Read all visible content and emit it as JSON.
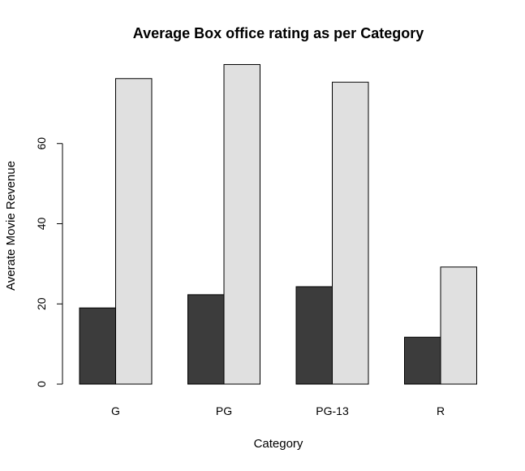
{
  "chart_data": {
    "type": "bar",
    "title": "Average Box office rating as per Category",
    "xlabel": "Category",
    "ylabel": "Averate Movie Revenue",
    "categories": [
      "G",
      "PG",
      "PG-13",
      "R"
    ],
    "series": [
      {
        "values": [
          19,
          22.3,
          24.3,
          11.7
        ],
        "color": "#3c3c3c"
      },
      {
        "values": [
          76.2,
          79.7,
          75.3,
          29.2
        ],
        "color": "#e0e0e0"
      }
    ],
    "ylim": [
      0,
      80
    ],
    "yticks": [
      0,
      20,
      40,
      60
    ],
    "grid": false,
    "legend": "none"
  }
}
